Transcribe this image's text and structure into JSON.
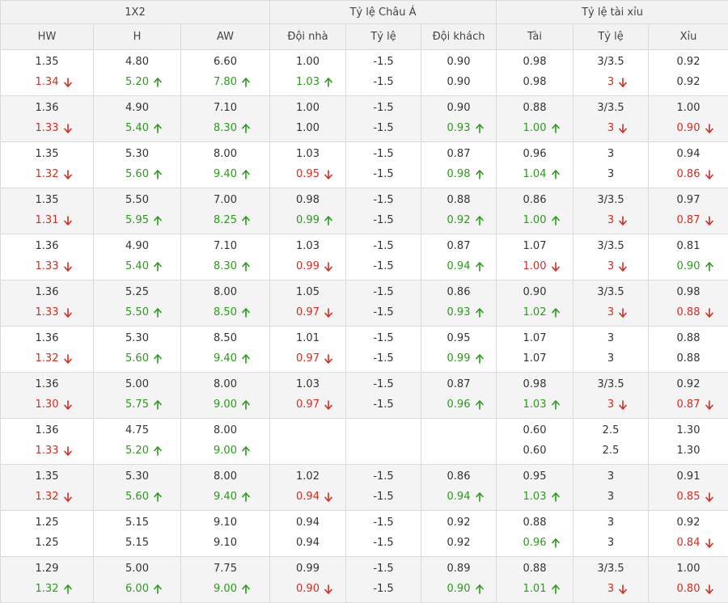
{
  "headers": {
    "groups": [
      "1X2",
      "Tỷ lệ Châu Á",
      "Tỷ lệ tài xỉu"
    ],
    "columns": [
      "HW",
      "H",
      "AW",
      "Đội nhà",
      "Tỷ lệ",
      "Đội khách",
      "Tài",
      "Tỷ lệ",
      "Xỉu"
    ]
  },
  "colors": {
    "up": "#2a9b1a",
    "down": "#d62b1f",
    "header_bg": "#f2f2f2",
    "alt_row_bg": "#f4f4f4",
    "border": "#dadada"
  },
  "rows": [
    {
      "cells": [
        [
          "1.35",
          [
            "1.34",
            "down"
          ]
        ],
        [
          "4.80",
          [
            "5.20",
            "up"
          ]
        ],
        [
          "6.60",
          [
            "7.80",
            "up"
          ]
        ],
        [
          "1.00",
          [
            "1.03",
            "up"
          ]
        ],
        [
          "-1.5",
          [
            "-1.5",
            ""
          ]
        ],
        [
          "0.90",
          [
            "0.90",
            ""
          ]
        ],
        [
          "0.98",
          [
            "0.98",
            ""
          ]
        ],
        [
          "3/3.5",
          [
            "3",
            "down"
          ]
        ],
        [
          "0.92",
          [
            "0.92",
            ""
          ]
        ]
      ]
    },
    {
      "cells": [
        [
          "1.36",
          [
            "1.33",
            "down"
          ]
        ],
        [
          "4.90",
          [
            "5.40",
            "up"
          ]
        ],
        [
          "7.10",
          [
            "8.30",
            "up"
          ]
        ],
        [
          "1.00",
          [
            "1.00",
            ""
          ]
        ],
        [
          "-1.5",
          [
            "-1.5",
            ""
          ]
        ],
        [
          "0.90",
          [
            "0.93",
            "up"
          ]
        ],
        [
          "0.88",
          [
            "1.00",
            "up"
          ]
        ],
        [
          "3/3.5",
          [
            "3",
            "down"
          ]
        ],
        [
          "1.00",
          [
            "0.90",
            "down"
          ]
        ]
      ]
    },
    {
      "cells": [
        [
          "1.35",
          [
            "1.32",
            "down"
          ]
        ],
        [
          "5.30",
          [
            "5.60",
            "up"
          ]
        ],
        [
          "8.00",
          [
            "9.40",
            "up"
          ]
        ],
        [
          "1.03",
          [
            "0.95",
            "down"
          ]
        ],
        [
          "-1.5",
          [
            "-1.5",
            ""
          ]
        ],
        [
          "0.87",
          [
            "0.98",
            "up"
          ]
        ],
        [
          "0.96",
          [
            "1.04",
            "up"
          ]
        ],
        [
          "3",
          [
            "3",
            ""
          ]
        ],
        [
          "0.94",
          [
            "0.86",
            "down"
          ]
        ]
      ]
    },
    {
      "cells": [
        [
          "1.35",
          [
            "1.31",
            "down"
          ]
        ],
        [
          "5.50",
          [
            "5.95",
            "up"
          ]
        ],
        [
          "7.00",
          [
            "8.25",
            "up"
          ]
        ],
        [
          "0.98",
          [
            "0.99",
            "up"
          ]
        ],
        [
          "-1.5",
          [
            "-1.5",
            ""
          ]
        ],
        [
          "0.88",
          [
            "0.92",
            "up"
          ]
        ],
        [
          "0.86",
          [
            "1.00",
            "up"
          ]
        ],
        [
          "3/3.5",
          [
            "3",
            "down"
          ]
        ],
        [
          "0.97",
          [
            "0.87",
            "down"
          ]
        ]
      ]
    },
    {
      "cells": [
        [
          "1.36",
          [
            "1.33",
            "down"
          ]
        ],
        [
          "4.90",
          [
            "5.40",
            "up"
          ]
        ],
        [
          "7.10",
          [
            "8.30",
            "up"
          ]
        ],
        [
          "1.03",
          [
            "0.99",
            "down"
          ]
        ],
        [
          "-1.5",
          [
            "-1.5",
            ""
          ]
        ],
        [
          "0.87",
          [
            "0.94",
            "up"
          ]
        ],
        [
          "1.07",
          [
            "1.00",
            "down"
          ]
        ],
        [
          "3/3.5",
          [
            "3",
            "down"
          ]
        ],
        [
          "0.81",
          [
            "0.90",
            "up"
          ]
        ]
      ]
    },
    {
      "cells": [
        [
          "1.36",
          [
            "1.33",
            "down"
          ]
        ],
        [
          "5.25",
          [
            "5.50",
            "up"
          ]
        ],
        [
          "8.00",
          [
            "8.50",
            "up"
          ]
        ],
        [
          "1.05",
          [
            "0.97",
            "down"
          ]
        ],
        [
          "-1.5",
          [
            "-1.5",
            ""
          ]
        ],
        [
          "0.86",
          [
            "0.93",
            "up"
          ]
        ],
        [
          "0.90",
          [
            "1.02",
            "up"
          ]
        ],
        [
          "3/3.5",
          [
            "3",
            "down"
          ]
        ],
        [
          "0.98",
          [
            "0.88",
            "down"
          ]
        ]
      ]
    },
    {
      "cells": [
        [
          "1.36",
          [
            "1.32",
            "down"
          ]
        ],
        [
          "5.30",
          [
            "5.60",
            "up"
          ]
        ],
        [
          "8.50",
          [
            "9.40",
            "up"
          ]
        ],
        [
          "1.01",
          [
            "0.97",
            "down"
          ]
        ],
        [
          "-1.5",
          [
            "-1.5",
            ""
          ]
        ],
        [
          "0.95",
          [
            "0.99",
            "up"
          ]
        ],
        [
          "1.07",
          [
            "1.07",
            ""
          ]
        ],
        [
          "3",
          [
            "3",
            ""
          ]
        ],
        [
          "0.88",
          [
            "0.88",
            ""
          ]
        ]
      ]
    },
    {
      "cells": [
        [
          "1.36",
          [
            "1.30",
            "down"
          ]
        ],
        [
          "5.00",
          [
            "5.75",
            "up"
          ]
        ],
        [
          "8.00",
          [
            "9.00",
            "up"
          ]
        ],
        [
          "1.03",
          [
            "0.97",
            "down"
          ]
        ],
        [
          "-1.5",
          [
            "-1.5",
            ""
          ]
        ],
        [
          "0.87",
          [
            "0.96",
            "up"
          ]
        ],
        [
          "0.98",
          [
            "1.03",
            "up"
          ]
        ],
        [
          "3/3.5",
          [
            "3",
            "down"
          ]
        ],
        [
          "0.92",
          [
            "0.87",
            "down"
          ]
        ]
      ]
    },
    {
      "cells": [
        [
          "1.36",
          [
            "1.33",
            "down"
          ]
        ],
        [
          "4.75",
          [
            "5.20",
            "up"
          ]
        ],
        [
          "8.00",
          [
            "9.00",
            "up"
          ]
        ],
        [
          "",
          [
            "",
            ""
          ]
        ],
        [
          "",
          [
            "",
            ""
          ]
        ],
        [
          "",
          [
            "",
            ""
          ]
        ],
        [
          "0.60",
          [
            "0.60",
            ""
          ]
        ],
        [
          "2.5",
          [
            "2.5",
            ""
          ]
        ],
        [
          "1.30",
          [
            "1.30",
            ""
          ]
        ]
      ]
    },
    {
      "cells": [
        [
          "1.35",
          [
            "1.32",
            "down"
          ]
        ],
        [
          "5.30",
          [
            "5.60",
            "up"
          ]
        ],
        [
          "8.00",
          [
            "9.40",
            "up"
          ]
        ],
        [
          "1.02",
          [
            "0.94",
            "down"
          ]
        ],
        [
          "-1.5",
          [
            "-1.5",
            ""
          ]
        ],
        [
          "0.86",
          [
            "0.94",
            "up"
          ]
        ],
        [
          "0.95",
          [
            "1.03",
            "up"
          ]
        ],
        [
          "3",
          [
            "3",
            ""
          ]
        ],
        [
          "0.91",
          [
            "0.85",
            "down"
          ]
        ]
      ]
    },
    {
      "cells": [
        [
          "1.25",
          [
            "1.25",
            ""
          ]
        ],
        [
          "5.15",
          [
            "5.15",
            ""
          ]
        ],
        [
          "9.10",
          [
            "9.10",
            ""
          ]
        ],
        [
          "0.94",
          [
            "0.94",
            ""
          ]
        ],
        [
          "-1.5",
          [
            "-1.5",
            ""
          ]
        ],
        [
          "0.92",
          [
            "0.92",
            ""
          ]
        ],
        [
          "0.88",
          [
            "0.96",
            "up"
          ]
        ],
        [
          "3",
          [
            "3",
            ""
          ]
        ],
        [
          "0.92",
          [
            "0.84",
            "down"
          ]
        ]
      ]
    },
    {
      "cells": [
        [
          "1.29",
          [
            "1.32",
            "up"
          ]
        ],
        [
          "5.00",
          [
            "6.00",
            "up"
          ]
        ],
        [
          "7.75",
          [
            "9.00",
            "up"
          ]
        ],
        [
          "0.99",
          [
            "0.90",
            "down"
          ]
        ],
        [
          "-1.5",
          [
            "-1.5",
            ""
          ]
        ],
        [
          "0.89",
          [
            "0.90",
            "up"
          ]
        ],
        [
          "0.88",
          [
            "1.01",
            "up"
          ]
        ],
        [
          "3/3.5",
          [
            "3",
            "down"
          ]
        ],
        [
          "1.00",
          [
            "0.80",
            "down"
          ]
        ]
      ]
    }
  ]
}
